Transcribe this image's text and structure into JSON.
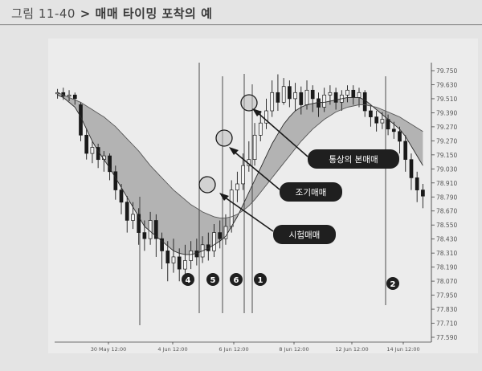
{
  "figure": {
    "label": "그림 11-40",
    "separator": ">",
    "title": "매매 타이밍 포착의 예"
  },
  "chart_data": {
    "type": "candlestick",
    "title": "매매 타이밍 포착의 예",
    "ylim": [
      77.59,
      79.78
    ],
    "y_ticks": [
      "79.750",
      "79.630",
      "79.510",
      "79.390",
      "79.270",
      "79.270",
      "79.150",
      "79.030",
      "78.910",
      "78.790",
      "78.670",
      "78.550",
      "78.430",
      "78.310",
      "78.190",
      "78.070",
      "77.950",
      "77.830",
      "77.710",
      "77.590"
    ],
    "x_ticks": [
      "30 May 12:00",
      "4 Jun 12:00",
      "6 Jun 12:00",
      "8 Jun 12:00",
      "12 Jun 12:00",
      "14 Jun 12:00"
    ],
    "callouts": [
      "통상의 본매매",
      "조기매매",
      "시험매매"
    ],
    "markers": [
      "4",
      "5",
      "6",
      "1",
      "2"
    ],
    "candles": [
      [
        79.59,
        79.6,
        79.63,
        79.55
      ],
      [
        79.6,
        79.57,
        79.64,
        79.54
      ],
      [
        79.57,
        79.58,
        79.62,
        79.53
      ],
      [
        79.58,
        79.55,
        79.6,
        79.5
      ],
      [
        79.5,
        79.25,
        79.52,
        79.2
      ],
      [
        79.25,
        79.1,
        79.3,
        79.05
      ],
      [
        79.1,
        79.15,
        79.2,
        79.02
      ],
      [
        79.15,
        79.05,
        79.18,
        78.98
      ],
      [
        79.05,
        79.08,
        79.12,
        78.95
      ],
      [
        79.08,
        78.95,
        79.1,
        78.88
      ],
      [
        78.95,
        78.8,
        79.0,
        78.72
      ],
      [
        78.8,
        78.7,
        78.85,
        78.6
      ],
      [
        78.7,
        78.55,
        78.75,
        78.45
      ],
      [
        78.55,
        78.6,
        78.7,
        78.48
      ],
      [
        78.6,
        78.45,
        78.65,
        78.35
      ],
      [
        78.45,
        78.4,
        78.55,
        78.3
      ],
      [
        78.4,
        78.55,
        78.62,
        78.35
      ],
      [
        78.55,
        78.4,
        78.6,
        78.25
      ],
      [
        78.4,
        78.3,
        78.45,
        78.15
      ],
      [
        78.3,
        78.2,
        78.38,
        78.05
      ],
      [
        78.2,
        78.25,
        78.4,
        78.12
      ],
      [
        78.25,
        78.15,
        78.32,
        78.05
      ],
      [
        78.15,
        78.22,
        78.35,
        78.1
      ],
      [
        78.22,
        78.3,
        78.38,
        78.15
      ],
      [
        78.3,
        78.25,
        78.4,
        78.18
      ],
      [
        78.25,
        78.35,
        78.42,
        78.2
      ],
      [
        78.35,
        78.3,
        78.45,
        78.22
      ],
      [
        78.3,
        78.45,
        78.52,
        78.25
      ],
      [
        78.45,
        78.4,
        78.55,
        78.32
      ],
      [
        78.4,
        78.5,
        78.6,
        78.35
      ],
      [
        78.5,
        78.8,
        78.88,
        78.45
      ],
      [
        78.8,
        78.85,
        78.95,
        78.7
      ],
      [
        78.85,
        79.0,
        79.1,
        78.8
      ],
      [
        79.0,
        79.05,
        79.2,
        78.95
      ],
      [
        79.05,
        79.25,
        79.35,
        79.0
      ],
      [
        79.25,
        79.35,
        79.45,
        79.2
      ],
      [
        79.35,
        79.45,
        79.55,
        79.3
      ],
      [
        79.45,
        79.6,
        79.7,
        79.4
      ],
      [
        79.6,
        79.52,
        79.75,
        79.45
      ],
      [
        79.52,
        79.65,
        79.72,
        79.5
      ],
      [
        79.65,
        79.55,
        79.7,
        79.48
      ],
      [
        79.55,
        79.6,
        79.68,
        79.45
      ],
      [
        79.6,
        79.5,
        79.65,
        79.42
      ],
      [
        79.5,
        79.62,
        79.7,
        79.46
      ],
      [
        79.62,
        79.55,
        79.66,
        79.44
      ],
      [
        79.55,
        79.48,
        79.6,
        79.4
      ],
      [
        79.48,
        79.58,
        79.64,
        79.44
      ],
      [
        79.58,
        79.6,
        79.66,
        79.5
      ],
      [
        79.6,
        79.52,
        79.64,
        79.46
      ],
      [
        79.52,
        79.58,
        79.62,
        79.45
      ],
      [
        79.58,
        79.62,
        79.66,
        79.52
      ],
      [
        79.62,
        79.56,
        79.66,
        79.5
      ],
      [
        79.56,
        79.6,
        79.64,
        79.48
      ],
      [
        79.6,
        79.45,
        79.62,
        79.4
      ],
      [
        79.45,
        79.4,
        79.5,
        79.32
      ],
      [
        79.4,
        79.35,
        79.45,
        79.28
      ],
      [
        79.35,
        79.38,
        79.44,
        79.3
      ],
      [
        79.38,
        79.3,
        79.42,
        79.25
      ],
      [
        79.3,
        79.28,
        79.36,
        79.22
      ],
      [
        79.28,
        79.2,
        79.32,
        79.1
      ],
      [
        79.2,
        79.05,
        79.25,
        78.95
      ],
      [
        79.05,
        78.9,
        79.1,
        78.8
      ],
      [
        78.9,
        78.8,
        78.95,
        78.7
      ],
      [
        78.8,
        78.75,
        78.85,
        78.65
      ]
    ],
    "ma_fast": [
      79.58,
      79.56,
      79.52,
      79.48,
      79.4,
      79.3,
      79.2,
      79.12,
      79.05,
      78.98,
      78.9,
      78.82,
      78.74,
      78.66,
      78.58,
      78.5,
      78.46,
      78.42,
      78.38,
      78.34,
      78.3,
      78.28,
      78.27,
      78.27,
      78.28,
      78.3,
      78.32,
      78.35,
      78.38,
      78.42,
      78.5,
      78.58,
      78.68,
      78.78,
      78.88,
      78.98,
      79.08,
      79.18,
      79.26,
      79.34,
      79.4,
      79.45,
      79.48,
      79.5,
      79.51,
      79.52,
      79.52,
      79.53,
      79.54,
      79.55,
      79.56,
      79.56,
      79.56,
      79.54,
      79.5,
      79.46,
      79.42,
      79.38,
      79.34,
      79.3,
      79.24,
      79.16,
      79.08,
      79.0
    ],
    "ma_slow": [
      79.6,
      79.58,
      79.56,
      79.54,
      79.52,
      79.49,
      79.46,
      79.43,
      79.4,
      79.36,
      79.32,
      79.27,
      79.22,
      79.17,
      79.12,
      79.06,
      79.0,
      78.95,
      78.9,
      78.85,
      78.8,
      78.76,
      78.72,
      78.68,
      78.65,
      78.62,
      78.6,
      78.58,
      78.57,
      78.57,
      78.58,
      78.6,
      78.63,
      78.67,
      78.72,
      78.78,
      78.84,
      78.9,
      78.96,
      79.02,
      79.08,
      79.14,
      79.2,
      79.25,
      79.3,
      79.34,
      79.38,
      79.41,
      79.44,
      79.46,
      79.48,
      79.49,
      79.5,
      79.5,
      79.49,
      79.48,
      79.46,
      79.44,
      79.42,
      79.4,
      79.37,
      79.34,
      79.31,
      79.28
    ]
  }
}
